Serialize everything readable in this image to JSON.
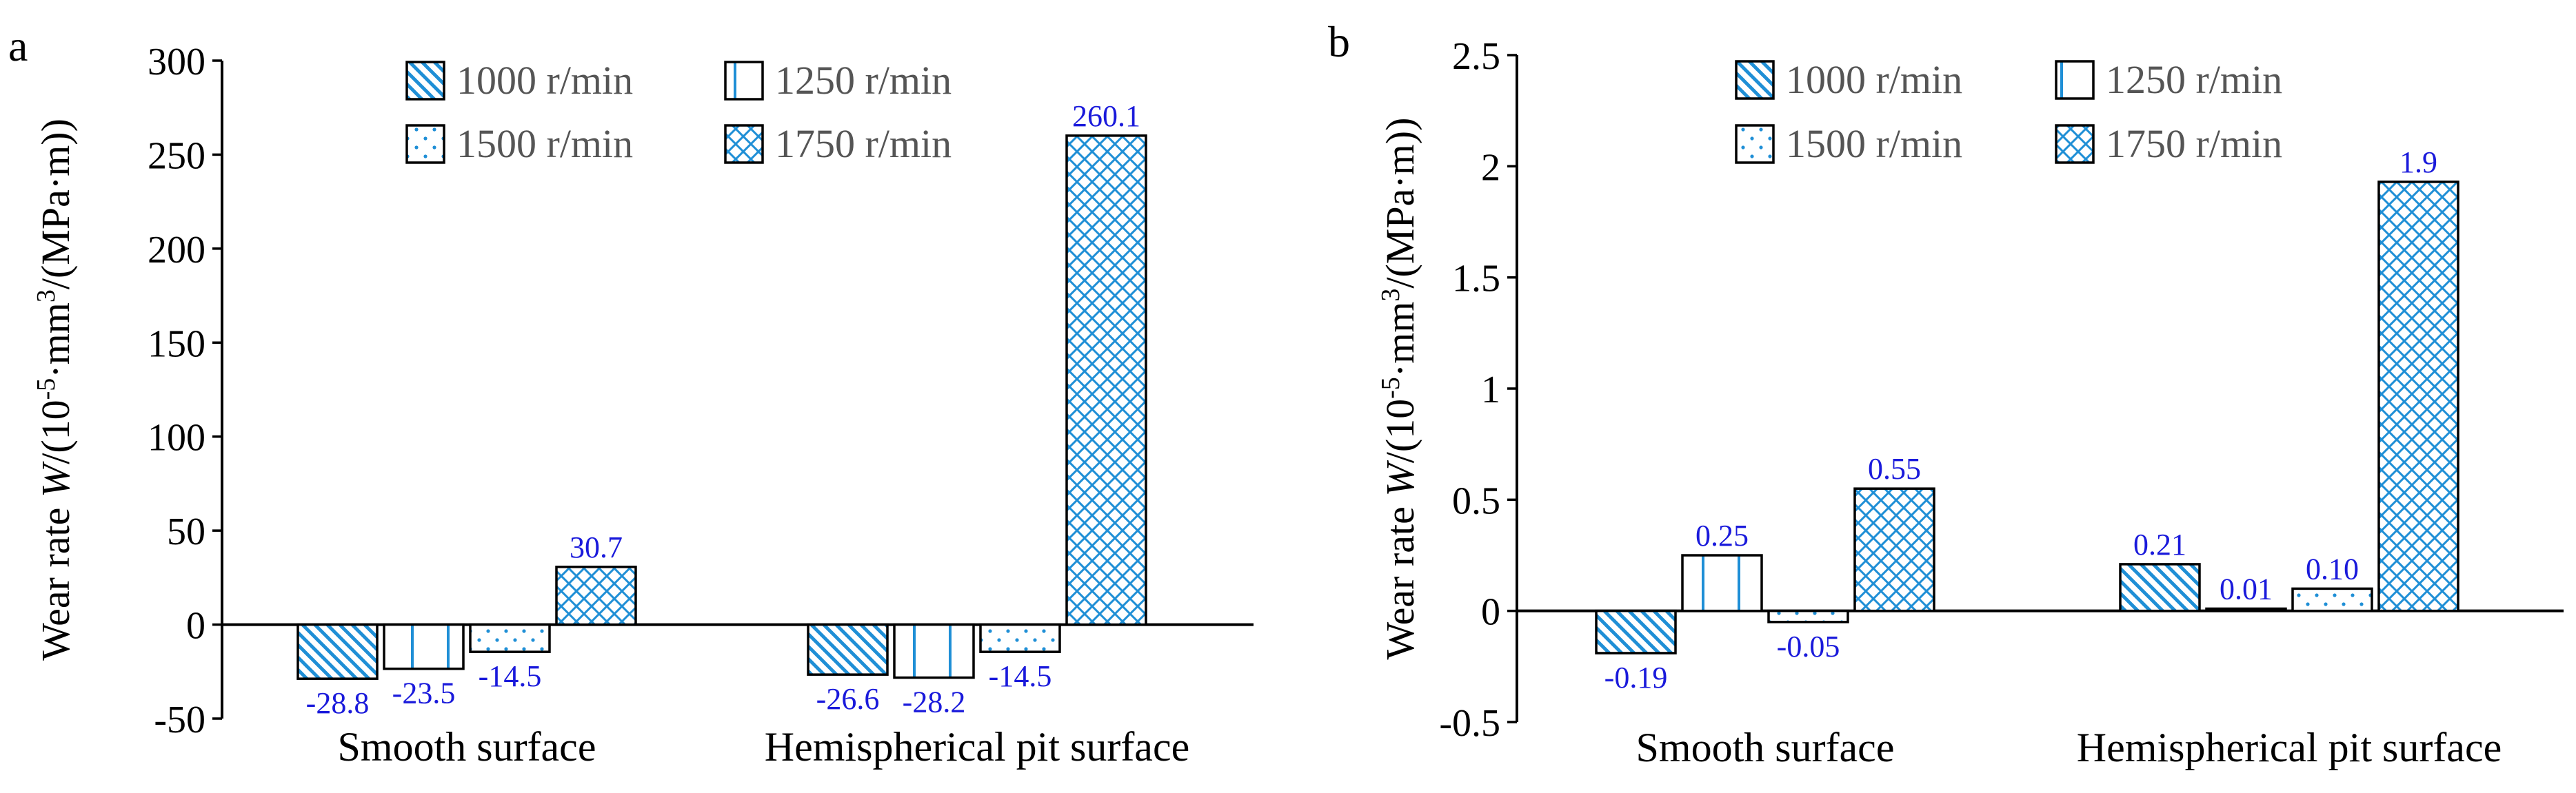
{
  "chart_data": [
    {
      "type": "bar",
      "panel_label": "a",
      "categories": [
        "Smooth surface",
        "Hemispherical pit surface"
      ],
      "series": [
        {
          "name": "1000 r/min",
          "pattern": "diagonal",
          "values": [
            -28.8,
            -26.6
          ],
          "labels": [
            "-28.8",
            "-26.6"
          ]
        },
        {
          "name": "1250 r/min",
          "pattern": "vertical",
          "values": [
            -23.5,
            -28.2
          ],
          "labels": [
            "-23.5",
            "-28.2"
          ]
        },
        {
          "name": "1500 r/min",
          "pattern": "dots",
          "values": [
            -14.5,
            -14.5
          ],
          "labels": [
            "-14.5",
            "-14.5"
          ]
        },
        {
          "name": "1750 r/min",
          "pattern": "crosshatch",
          "values": [
            30.7,
            260.1
          ],
          "labels": [
            "30.7",
            "260.1"
          ]
        }
      ],
      "ylabel_prefix": "Wear rate ",
      "ylabel_var": "W",
      "ylabel_unit": "/(10",
      "ylabel_exp1": "-5",
      "ylabel_mid": "·mm",
      "ylabel_exp2": "3",
      "ylabel_end": "/(MPa·m))",
      "ylim": [
        -50,
        300
      ],
      "yticks": [
        -50,
        0,
        50,
        100,
        150,
        200,
        250,
        300
      ],
      "ytick_labels": [
        "-50",
        "0",
        "50",
        "100",
        "150",
        "200",
        "250",
        "300"
      ],
      "legend_position": "top-center"
    },
    {
      "type": "bar",
      "panel_label": "b",
      "categories": [
        "Smooth surface",
        "Hemispherical pit surface"
      ],
      "series": [
        {
          "name": "1000 r/min",
          "pattern": "diagonal",
          "values": [
            -0.19,
            0.21
          ],
          "labels": [
            "-0.19",
            "0.21"
          ]
        },
        {
          "name": "1250 r/min",
          "pattern": "vertical",
          "values": [
            0.25,
            0.01
          ],
          "labels": [
            "0.25",
            "0.01"
          ]
        },
        {
          "name": "1500 r/min",
          "pattern": "dots",
          "values": [
            -0.05,
            0.1
          ],
          "labels": [
            "-0.05",
            "0.10"
          ]
        },
        {
          "name": "1750 r/min",
          "pattern": "crosshatch",
          "values": [
            0.55,
            1.93
          ],
          "labels": [
            "0.55",
            "1.9"
          ]
        }
      ],
      "ylabel_prefix": "Wear rate ",
      "ylabel_var": "W",
      "ylabel_unit": "/(10",
      "ylabel_exp1": "-5",
      "ylabel_mid": "·mm",
      "ylabel_exp2": "3",
      "ylabel_end": "/(MPa·m))",
      "ylim": [
        -0.5,
        2.5
      ],
      "yticks": [
        -0.5,
        0,
        0.5,
        1,
        1.5,
        2,
        2.5
      ],
      "ytick_labels": [
        "-0.5",
        "0",
        "0.5",
        "1",
        "1.5",
        "2",
        "2.5"
      ],
      "legend_position": "top-center"
    }
  ],
  "colors": {
    "accent": "#1f8fd6",
    "label": "#1a1adb",
    "axis": "#000000",
    "text": "#000000"
  }
}
